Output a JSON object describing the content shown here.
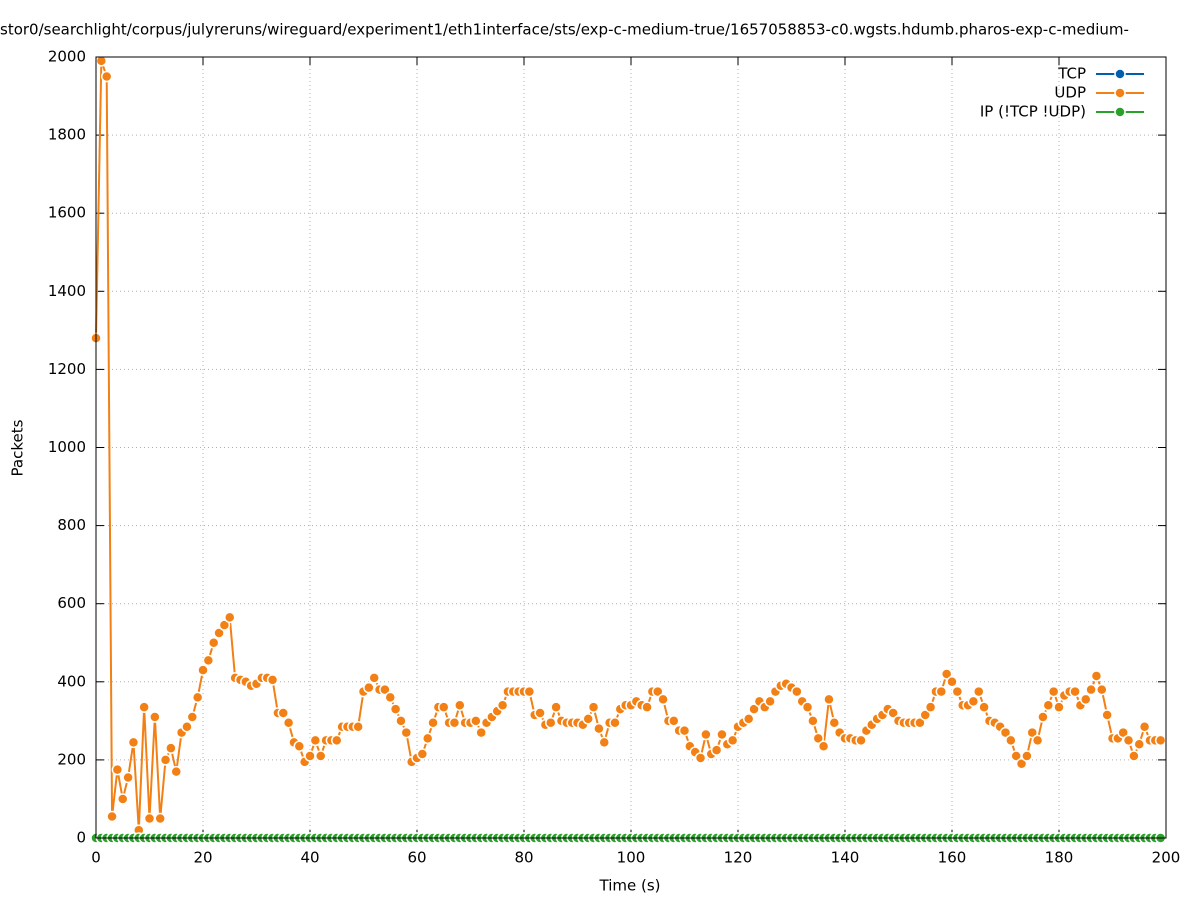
{
  "chart_data": {
    "type": "line",
    "title": "stor0/searchlight/corpus/julyreruns/wireguard/experiment1/eth1interface/sts/exp-c-medium-true/1657058853-c0.wgsts.hdumb.pharos-exp-c-medium-",
    "x_label": "Time (s)",
    "y_label": "Packets",
    "xlim": [
      0,
      200
    ],
    "xticks": [
      0,
      20,
      40,
      60,
      80,
      100,
      120,
      140,
      160,
      180,
      200
    ],
    "ylim": [
      0,
      2000
    ],
    "yticks": [
      0,
      200,
      400,
      600,
      800,
      1000,
      1200,
      1400,
      1600,
      1800,
      2000
    ],
    "grid": true,
    "legend": "top-right",
    "x": [
      0,
      1,
      2,
      3,
      4,
      5,
      6,
      7,
      8,
      9,
      10,
      11,
      12,
      13,
      14,
      15,
      16,
      17,
      18,
      19,
      20,
      21,
      22,
      23,
      24,
      25,
      26,
      27,
      28,
      29,
      30,
      31,
      32,
      33,
      34,
      35,
      36,
      37,
      38,
      39,
      40,
      41,
      42,
      43,
      44,
      45,
      46,
      47,
      48,
      49,
      50,
      51,
      52,
      53,
      54,
      55,
      56,
      57,
      58,
      59,
      60,
      61,
      62,
      63,
      64,
      65,
      66,
      67,
      68,
      69,
      70,
      71,
      72,
      73,
      74,
      75,
      76,
      77,
      78,
      79,
      80,
      81,
      82,
      83,
      84,
      85,
      86,
      87,
      88,
      89,
      90,
      91,
      92,
      93,
      94,
      95,
      96,
      97,
      98,
      99,
      100,
      101,
      102,
      103,
      104,
      105,
      106,
      107,
      108,
      109,
      110,
      111,
      112,
      113,
      114,
      115,
      116,
      117,
      118,
      119,
      120,
      121,
      122,
      123,
      124,
      125,
      126,
      127,
      128,
      129,
      130,
      131,
      132,
      133,
      134,
      135,
      136,
      137,
      138,
      139,
      140,
      141,
      142,
      143,
      144,
      145,
      146,
      147,
      148,
      149,
      150,
      151,
      152,
      153,
      154,
      155,
      156,
      157,
      158,
      159,
      160,
      161,
      162,
      163,
      164,
      165,
      166,
      167,
      168,
      169,
      170,
      171,
      172,
      173,
      174,
      175,
      176,
      177,
      178,
      179,
      180,
      181,
      182,
      183,
      184,
      185,
      186,
      187,
      188,
      189,
      190,
      191,
      192,
      193,
      194,
      195,
      196,
      197,
      198,
      199
    ],
    "series": [
      {
        "name": "TCP",
        "color": "#0060ad",
        "values": [
          0,
          0,
          0,
          0,
          0,
          0,
          0,
          0,
          0,
          0,
          0,
          0,
          0,
          0,
          0,
          0,
          0,
          0,
          0,
          0,
          0,
          0,
          0,
          0,
          0,
          0,
          0,
          0,
          0,
          0,
          0,
          0,
          0,
          0,
          0,
          0,
          0,
          0,
          0,
          0,
          0,
          0,
          0,
          0,
          0,
          0,
          0,
          0,
          0,
          0,
          0,
          0,
          0,
          0,
          0,
          0,
          0,
          0,
          0,
          0,
          0,
          0,
          0,
          0,
          0,
          0,
          0,
          0,
          0,
          0,
          0,
          0,
          0,
          0,
          0,
          0,
          0,
          0,
          0,
          0,
          0,
          0,
          0,
          0,
          0,
          0,
          0,
          0,
          0,
          0,
          0,
          0,
          0,
          0,
          0,
          0,
          0,
          0,
          0,
          0,
          0,
          0,
          0,
          0,
          0,
          0,
          0,
          0,
          0,
          0,
          0,
          0,
          0,
          0,
          0,
          0,
          0,
          0,
          0,
          0,
          0,
          0,
          0,
          0,
          0,
          0,
          0,
          0,
          0,
          0,
          0,
          0,
          0,
          0,
          0,
          0,
          0,
          0,
          0,
          0,
          0,
          0,
          0,
          0,
          0,
          0,
          0,
          0,
          0,
          0,
          0,
          0,
          0,
          0,
          0,
          0,
          0,
          0,
          0,
          0,
          0,
          0,
          0,
          0,
          0,
          0,
          0,
          0,
          0,
          0,
          0,
          0,
          0,
          0,
          0,
          0,
          0,
          0,
          0,
          0,
          0,
          0,
          0,
          0,
          0,
          0,
          0,
          0,
          0,
          0,
          0,
          0,
          0,
          0,
          0,
          0,
          0,
          0,
          0,
          0
        ]
      },
      {
        "name": "UDP",
        "color": "#f28014",
        "values": [
          1280,
          1990,
          1950,
          55,
          175,
          100,
          155,
          245,
          20,
          335,
          50,
          310,
          50,
          200,
          230,
          170,
          270,
          285,
          310,
          360,
          430,
          455,
          500,
          525,
          545,
          565,
          410,
          405,
          400,
          390,
          395,
          410,
          410,
          405,
          320,
          320,
          295,
          245,
          235,
          195,
          210,
          250,
          210,
          250,
          250,
          250,
          285,
          285,
          285,
          285,
          375,
          385,
          410,
          380,
          380,
          360,
          330,
          300,
          270,
          195,
          205,
          215,
          255,
          295,
          335,
          335,
          295,
          295,
          340,
          295,
          295,
          300,
          270,
          295,
          310,
          325,
          340,
          375,
          375,
          375,
          375,
          375,
          315,
          320,
          290,
          295,
          335,
          300,
          295,
          295,
          295,
          290,
          305,
          335,
          280,
          245,
          295,
          295,
          330,
          340,
          340,
          350,
          340,
          335,
          375,
          375,
          355,
          300,
          300,
          275,
          275,
          235,
          220,
          205,
          265,
          215,
          225,
          265,
          240,
          250,
          285,
          295,
          305,
          330,
          350,
          335,
          350,
          375,
          390,
          395,
          385,
          375,
          350,
          335,
          300,
          255,
          235,
          355,
          295,
          270,
          255,
          255,
          250,
          250,
          275,
          290,
          305,
          315,
          330,
          320,
          300,
          295,
          295,
          295,
          295,
          315,
          335,
          375,
          375,
          420,
          400,
          375,
          340,
          340,
          350,
          375,
          335,
          300,
          295,
          285,
          270,
          250,
          210,
          190,
          210,
          270,
          250,
          310,
          340,
          375,
          335,
          365,
          375,
          375,
          340,
          355,
          380,
          415,
          380,
          315,
          255,
          255,
          270,
          250,
          210,
          240,
          285,
          250,
          250,
          250
        ]
      },
      {
        "name": "IP (!TCP  !UDP)",
        "color": "#2ca02c",
        "values": [
          0,
          0,
          0,
          0,
          0,
          0,
          0,
          0,
          0,
          0,
          0,
          0,
          0,
          0,
          0,
          0,
          0,
          0,
          0,
          0,
          0,
          0,
          0,
          0,
          0,
          0,
          0,
          0,
          0,
          0,
          0,
          0,
          0,
          0,
          0,
          0,
          0,
          0,
          0,
          0,
          0,
          0,
          0,
          0,
          0,
          0,
          0,
          0,
          0,
          0,
          0,
          0,
          0,
          0,
          0,
          0,
          0,
          0,
          0,
          0,
          0,
          0,
          0,
          0,
          0,
          0,
          0,
          0,
          0,
          0,
          0,
          0,
          0,
          0,
          0,
          0,
          0,
          0,
          0,
          0,
          0,
          0,
          0,
          0,
          0,
          0,
          0,
          0,
          0,
          0,
          0,
          0,
          0,
          0,
          0,
          0,
          0,
          0,
          0,
          0,
          0,
          0,
          0,
          0,
          0,
          0,
          0,
          0,
          0,
          0,
          0,
          0,
          0,
          0,
          0,
          0,
          0,
          0,
          0,
          0,
          0,
          0,
          0,
          0,
          0,
          0,
          0,
          0,
          0,
          0,
          0,
          0,
          0,
          0,
          0,
          0,
          0,
          0,
          0,
          0,
          0,
          0,
          0,
          0,
          0,
          0,
          0,
          0,
          0,
          0,
          0,
          0,
          0,
          0,
          0,
          0,
          0,
          0,
          0,
          0,
          0,
          0,
          0,
          0,
          0,
          0,
          0,
          0,
          0,
          0,
          0,
          0,
          0,
          0,
          0,
          0,
          0,
          0,
          0,
          0,
          0,
          0,
          0,
          0,
          0,
          0,
          0,
          0,
          0,
          0,
          0,
          0,
          0,
          0,
          0,
          0,
          0,
          0,
          0,
          0
        ]
      }
    ]
  }
}
